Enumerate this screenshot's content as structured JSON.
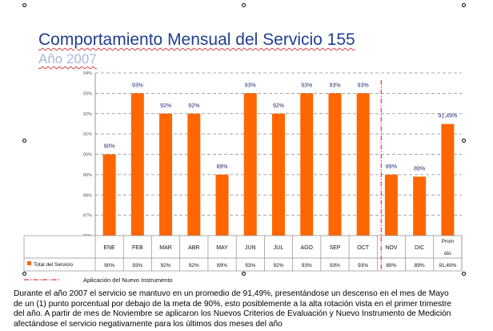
{
  "title": "Comportamiento Mensual del Servicio 155",
  "subtitle": "Año 2007",
  "chart_data": {
    "type": "bar",
    "categories": [
      "ENE",
      "FEB",
      "MAR",
      "ABR",
      "MAY",
      "JUN",
      "JUL",
      "AGO",
      "SEP",
      "OCT",
      "NOV",
      "DIC",
      "Prom\ndio"
    ],
    "series": [
      {
        "name": "Total del Servicio",
        "values": [
          90,
          93,
          92,
          92,
          89,
          93,
          92,
          93,
          93,
          93,
          89,
          88.9,
          91.49
        ],
        "labels": [
          "90%",
          "93%",
          "92%",
          "92%",
          "89%",
          "93%",
          "92%",
          "93%",
          "93%",
          "93%",
          "89%",
          "89%",
          "91,49%"
        ],
        "table_values": [
          "90%",
          "93%",
          "92%",
          "92%",
          "89%",
          "93%",
          "92%",
          "93%",
          "93%",
          "93%",
          "89%",
          "89%",
          "91,49%"
        ],
        "color": "#ff6600"
      }
    ],
    "y_ticks": [
      "86%",
      "87%",
      "88%",
      "89%",
      "90%",
      "91%",
      "92%",
      "93%",
      "94%"
    ],
    "ylim": [
      86,
      94
    ],
    "grid": true,
    "annotation": {
      "position_after_category": "OCT",
      "label": "Aplicación del Nuevo Instrumento",
      "color": "#e8383d"
    }
  },
  "paragraph": [
    "Durante el año 2007 el servicio se mantuvo en un promedio de 91,49%, presentándose un descenso en el mes de Mayo",
    "de un (1) punto porcentual por debajo de la meta de 90%, esto posiblemente a la alta rotación vista en el primer trimestre",
    "del año. A partir de mes de Noviembre se aplicaron los Nuevos Criterios de Evaluación y Nuevo Instrumento de Medición",
    "afectándose el servicio negativamente para los últimos dos meses del año"
  ]
}
